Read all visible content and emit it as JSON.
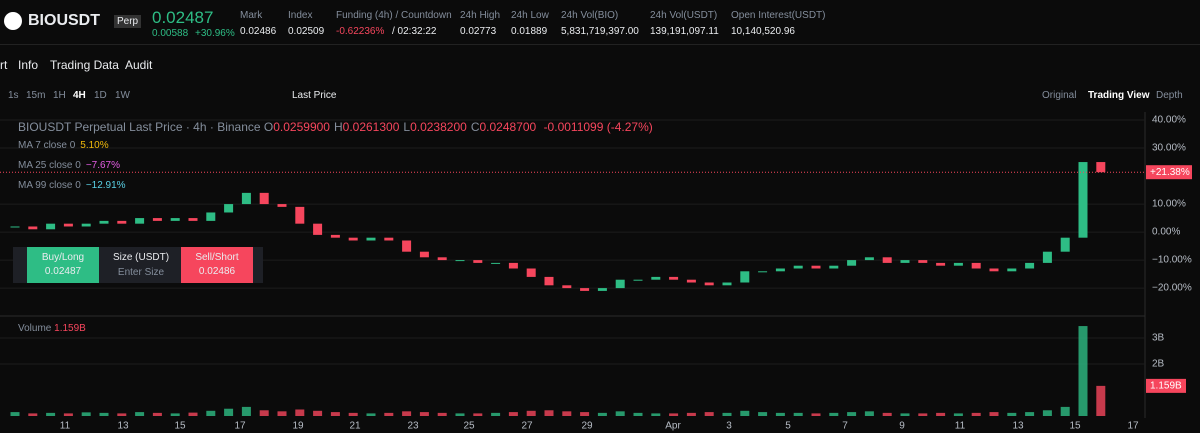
{
  "header": {
    "symbol": "BIOUSDT",
    "tag": "Perp",
    "price": "0.02487",
    "change": "0.00588",
    "change_pct": "+30.96%",
    "stats": [
      {
        "label": "Mark",
        "value": "0.02486"
      },
      {
        "label": "Index",
        "value": "0.02509"
      },
      {
        "label": "Funding (4h) / Countdown",
        "value": "-0.62236%",
        "extra": "/ 02:32:22"
      },
      {
        "label": "24h High",
        "value": "0.02773"
      },
      {
        "label": "24h Low",
        "value": "0.01889"
      },
      {
        "label": "24h Vol(BIO)",
        "value": "5,831,719,397.00"
      },
      {
        "label": "24h Vol(USDT)",
        "value": "139,191,097.11"
      },
      {
        "label": "Open Interest(USDT)",
        "value": "10,140,520.96"
      }
    ]
  },
  "tabs": [
    "rt",
    "Info",
    "Trading Data",
    "Audit"
  ],
  "toolbar": {
    "intervals": [
      "1s",
      "15m",
      "1H",
      "4H",
      "1D",
      "1W"
    ],
    "price_type": "Last Price",
    "views": [
      "Original",
      "Trading View",
      "Depth"
    ]
  },
  "legend": {
    "title": "BIOUSDT Perpetual Last Price · 4h · Binance",
    "ohlc": [
      {
        "label": "O",
        "value": "0.0259900"
      },
      {
        "label": "H",
        "value": "0.0261300"
      },
      {
        "label": "L",
        "value": "0.0238200"
      },
      {
        "label": "C",
        "value": "0.0248700"
      }
    ],
    "change": "-0.0011099 (-4.27%)",
    "ma": [
      {
        "label": "MA 7 close 0",
        "value": "5.10%"
      },
      {
        "label": "MA 25 close 0",
        "value": "−7.67%"
      },
      {
        "label": "MA 99 close 0",
        "value": "−12.91%"
      }
    ]
  },
  "trade": {
    "buy": "Buy/Long",
    "buy_price": "0.02487",
    "size": "Size (USDT)",
    "placeholder": "Enter Size",
    "sell": "Sell/Short",
    "sell_price": "0.02486"
  },
  "chart": {
    "type": "candlestick",
    "ylim": [
      -29.6,
      41.8
    ],
    "yticks": [
      {
        "value": 40,
        "label": "40.00%"
      },
      {
        "value": 30,
        "label": "30.00%"
      },
      {
        "value": 10,
        "label": "10.00%"
      },
      {
        "value": 0,
        "label": "0.00%"
      },
      {
        "value": -10,
        "label": "−10.00%"
      },
      {
        "value": -20,
        "label": "−20.00%"
      }
    ],
    "closes": [
      2,
      1,
      3,
      2,
      3,
      4,
      3,
      5,
      4,
      5,
      4,
      7,
      10,
      14,
      10,
      9,
      3,
      -1,
      -2,
      -3,
      -2,
      -3,
      -7,
      -9,
      -10,
      -10,
      -11,
      -11,
      -13,
      -16,
      -19,
      -20,
      -21,
      -20,
      -17,
      -17,
      -16,
      -17,
      -18,
      -19,
      -18,
      -14,
      -14,
      -13,
      -12,
      -13,
      -12,
      -10,
      -9,
      -11,
      -10,
      -11,
      -12,
      -11,
      -13,
      -14,
      -13,
      -11,
      -7,
      -2,
      25,
      21.38
    ],
    "last_label": "+21.38%",
    "volume_label": "Volume",
    "volume_value": "1.159B",
    "vlim": [
      0,
      3.77
    ],
    "vticks": [
      {
        "value": 3,
        "label": "3B"
      },
      {
        "value": 2,
        "label": "2B"
      }
    ],
    "volumes": [
      0.15,
      0.1,
      0.12,
      0.1,
      0.14,
      0.12,
      0.1,
      0.15,
      0.12,
      0.1,
      0.13,
      0.2,
      0.28,
      0.35,
      0.22,
      0.18,
      0.25,
      0.2,
      0.15,
      0.12,
      0.1,
      0.12,
      0.18,
      0.15,
      0.12,
      0.1,
      0.1,
      0.12,
      0.15,
      0.2,
      0.22,
      0.18,
      0.15,
      0.12,
      0.18,
      0.12,
      0.1,
      0.1,
      0.12,
      0.15,
      0.12,
      0.2,
      0.15,
      0.12,
      0.12,
      0.1,
      0.12,
      0.15,
      0.18,
      0.12,
      0.1,
      0.1,
      0.12,
      0.1,
      0.12,
      0.15,
      0.12,
      0.15,
      0.22,
      0.35,
      3.46,
      1.159
    ],
    "volume_last_label": "1.159B",
    "xticks": [
      "11",
      "13",
      "15",
      "17",
      "19",
      "21",
      "23",
      "25",
      "27",
      "29",
      "Apr",
      "3",
      "5",
      "7",
      "9",
      "11",
      "13",
      "15",
      "17"
    ]
  }
}
